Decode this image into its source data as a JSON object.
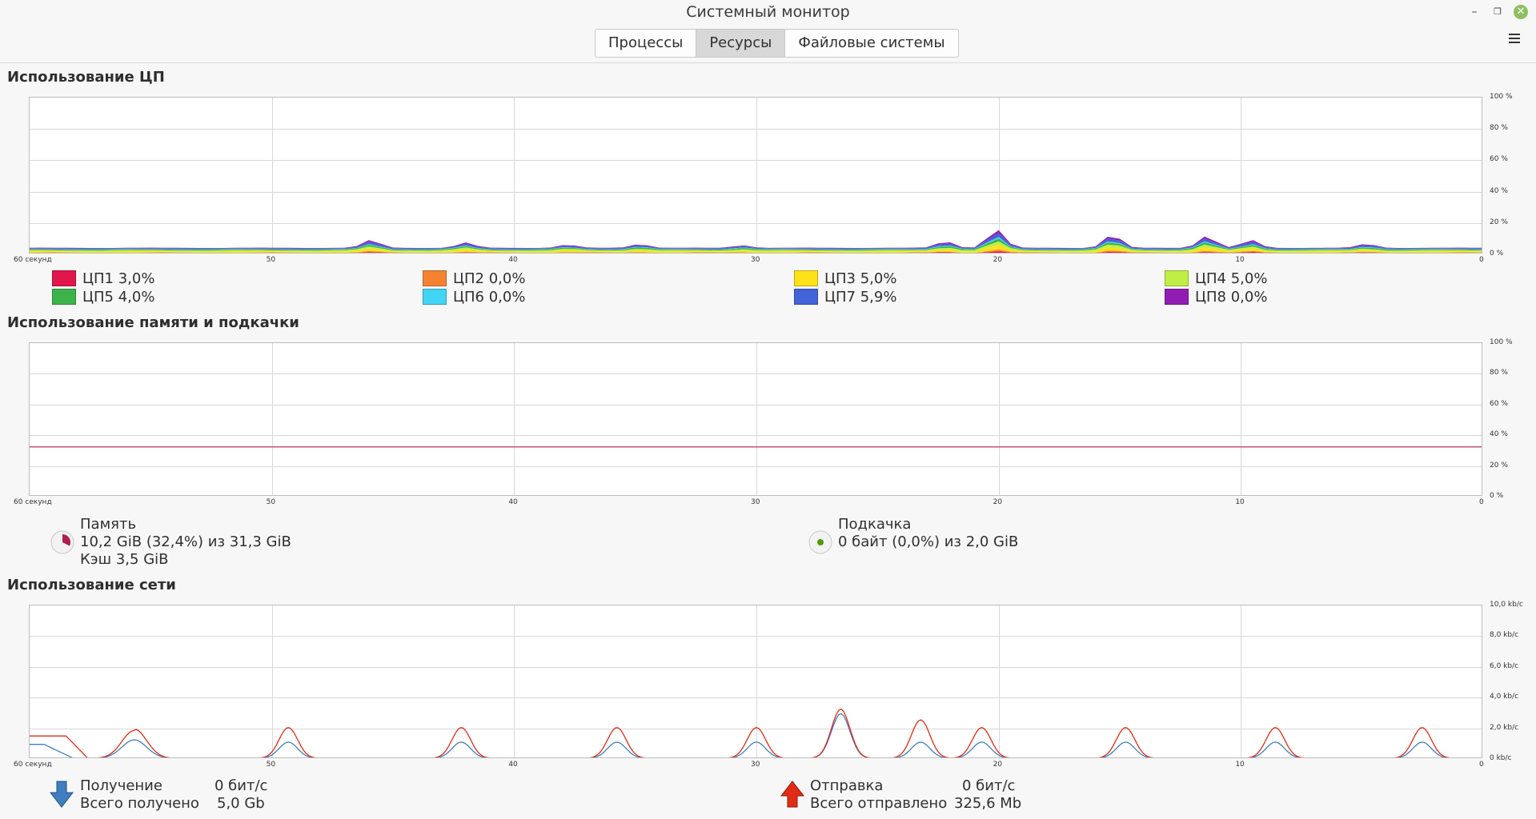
{
  "window": {
    "title": "Системный монитор"
  },
  "tabs": [
    {
      "label": "Процессы",
      "active": false
    },
    {
      "label": "Ресурсы",
      "active": true
    },
    {
      "label": "Файловые системы",
      "active": false
    }
  ],
  "cpu": {
    "title": "Использование ЦП",
    "x_ticks": [
      "60 секунд",
      "50",
      "40",
      "30",
      "20",
      "10",
      "0"
    ],
    "y_ticks": [
      "100 %",
      "80 %",
      "60 %",
      "40 %",
      "20 %",
      "0 %"
    ],
    "cores": [
      {
        "label": "ЦП1",
        "value": "3,0%",
        "color": "#e0164c"
      },
      {
        "label": "ЦП2",
        "value": "0,0%",
        "color": "#f58231"
      },
      {
        "label": "ЦП3",
        "value": "5,0%",
        "color": "#ffe119"
      },
      {
        "label": "ЦП4",
        "value": "5,0%",
        "color": "#bfef45"
      },
      {
        "label": "ЦП5",
        "value": "4,0%",
        "color": "#3cb44b"
      },
      {
        "label": "ЦП6",
        "value": "0,0%",
        "color": "#42d4f4"
      },
      {
        "label": "ЦП7",
        "value": "5,9%",
        "color": "#4363d8"
      },
      {
        "label": "ЦП8",
        "value": "0,0%",
        "color": "#911eb4"
      }
    ]
  },
  "memory": {
    "title": "Использование памяти и подкачки",
    "x_ticks": [
      "60 секунд",
      "50",
      "40",
      "30",
      "20",
      "10",
      "0"
    ],
    "y_ticks": [
      "100 %",
      "80 %",
      "60 %",
      "40 %",
      "20 %",
      "0 %"
    ],
    "ram": {
      "label": "Память",
      "usage": "10,2 GiB (32,4%) из 31,3 GiB",
      "cache": "Кэш 3,5 GiB",
      "percent": 32.4,
      "color": "#ad1f4d"
    },
    "swap": {
      "label": "Подкачка",
      "usage": "0 байт (0,0%) из 2,0 GiB",
      "percent": 0.0,
      "color": "#4e9a06"
    }
  },
  "network": {
    "title": "Использование сети",
    "x_ticks": [
      "60 секунд",
      "50",
      "40",
      "30",
      "20",
      "10",
      "0"
    ],
    "y_ticks": [
      "10,0 kb/c",
      "8,0 kb/c",
      "6,0 kb/c",
      "4,0 kb/c",
      "2,0 kb/c",
      "0 kb/c"
    ],
    "receive": {
      "label": "Получение",
      "rate": "0 бит/с",
      "total_label": "Всего получено",
      "total": "5,0 Gb",
      "color": "#3f7fbf"
    },
    "send": {
      "label": "Отправка",
      "rate": "0 бит/с",
      "total_label": "Всего отправлено",
      "total": "325,6 Mb",
      "color": "#e22b16"
    }
  }
}
